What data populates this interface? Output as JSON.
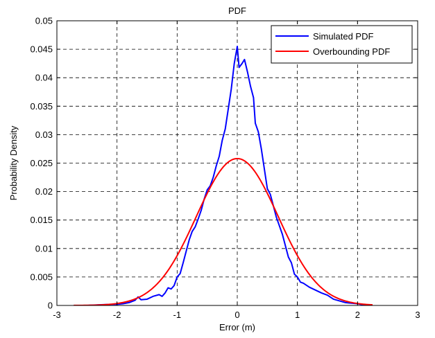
{
  "chart_data": {
    "type": "line",
    "title": "PDF",
    "xlabel": "Error (m)",
    "ylabel": "Probability Density",
    "xlim": [
      -3,
      3
    ],
    "ylim": [
      0,
      0.05
    ],
    "x_ticks": [
      -3,
      -2,
      -1,
      0,
      1,
      2,
      3
    ],
    "x_tick_labels": [
      "-3",
      "-2",
      "-1",
      "0",
      "1",
      "2",
      "3"
    ],
    "y_ticks": [
      0,
      0.005,
      0.01,
      0.015,
      0.02,
      0.025,
      0.03,
      0.035,
      0.04,
      0.045,
      0.05
    ],
    "y_tick_labels": [
      "0",
      "0.005",
      "0.01",
      "0.015",
      "0.02",
      "0.025",
      "0.03",
      "0.035",
      "0.04",
      "0.045",
      "0.05"
    ],
    "grid": true,
    "legend_position": "top-right",
    "series": [
      {
        "name": "Simulated PDF",
        "color": "#0000ff",
        "points": [
          [
            -2.72,
            0.0
          ],
          [
            -2.5,
            0.0
          ],
          [
            -2.3,
            0.0001
          ],
          [
            -2.1,
            0.0002
          ],
          [
            -2.0,
            0.0002
          ],
          [
            -1.9,
            0.0003
          ],
          [
            -1.8,
            0.0005
          ],
          [
            -1.7,
            0.0009
          ],
          [
            -1.65,
            0.0015
          ],
          [
            -1.6,
            0.001
          ],
          [
            -1.5,
            0.0011
          ],
          [
            -1.4,
            0.0016
          ],
          [
            -1.3,
            0.0019
          ],
          [
            -1.25,
            0.0016
          ],
          [
            -1.2,
            0.0022
          ],
          [
            -1.15,
            0.0031
          ],
          [
            -1.1,
            0.0029
          ],
          [
            -1.05,
            0.0035
          ],
          [
            -1.0,
            0.005
          ],
          [
            -0.95,
            0.0056
          ],
          [
            -0.9,
            0.0075
          ],
          [
            -0.85,
            0.0095
          ],
          [
            -0.8,
            0.0115
          ],
          [
            -0.75,
            0.013
          ],
          [
            -0.7,
            0.0138
          ],
          [
            -0.65,
            0.0152
          ],
          [
            -0.6,
            0.0167
          ],
          [
            -0.55,
            0.0187
          ],
          [
            -0.5,
            0.0203
          ],
          [
            -0.45,
            0.021
          ],
          [
            -0.4,
            0.0225
          ],
          [
            -0.35,
            0.0245
          ],
          [
            -0.3,
            0.0262
          ],
          [
            -0.25,
            0.029
          ],
          [
            -0.2,
            0.031
          ],
          [
            -0.15,
            0.0345
          ],
          [
            -0.1,
            0.038
          ],
          [
            -0.05,
            0.0425
          ],
          [
            0.0,
            0.0455
          ],
          [
            0.03,
            0.0418
          ],
          [
            0.08,
            0.0425
          ],
          [
            0.12,
            0.0432
          ],
          [
            0.17,
            0.041
          ],
          [
            0.22,
            0.0385
          ],
          [
            0.27,
            0.0365
          ],
          [
            0.3,
            0.032
          ],
          [
            0.35,
            0.0305
          ],
          [
            0.4,
            0.0275
          ],
          [
            0.45,
            0.024
          ],
          [
            0.5,
            0.0205
          ],
          [
            0.55,
            0.0195
          ],
          [
            0.6,
            0.0175
          ],
          [
            0.65,
            0.0155
          ],
          [
            0.7,
            0.014
          ],
          [
            0.75,
            0.0125
          ],
          [
            0.8,
            0.0105
          ],
          [
            0.85,
            0.0085
          ],
          [
            0.9,
            0.0075
          ],
          [
            0.95,
            0.0055
          ],
          [
            1.0,
            0.005
          ],
          [
            1.05,
            0.0041
          ],
          [
            1.1,
            0.0039
          ],
          [
            1.2,
            0.0032
          ],
          [
            1.3,
            0.0027
          ],
          [
            1.4,
            0.0022
          ],
          [
            1.5,
            0.0018
          ],
          [
            1.6,
            0.0011
          ],
          [
            1.7,
            0.0008
          ],
          [
            1.8,
            0.0005
          ],
          [
            1.9,
            0.0004
          ],
          [
            2.0,
            0.0003
          ],
          [
            2.1,
            0.0001
          ],
          [
            2.2,
            0.0
          ],
          [
            2.25,
            0.0
          ]
        ]
      },
      {
        "name": "Overbounding PDF",
        "color": "#ff0000",
        "mean": 0,
        "sigma": 0.68,
        "peak": 0.0258,
        "x_range": [
          -2.72,
          2.25
        ]
      }
    ]
  }
}
